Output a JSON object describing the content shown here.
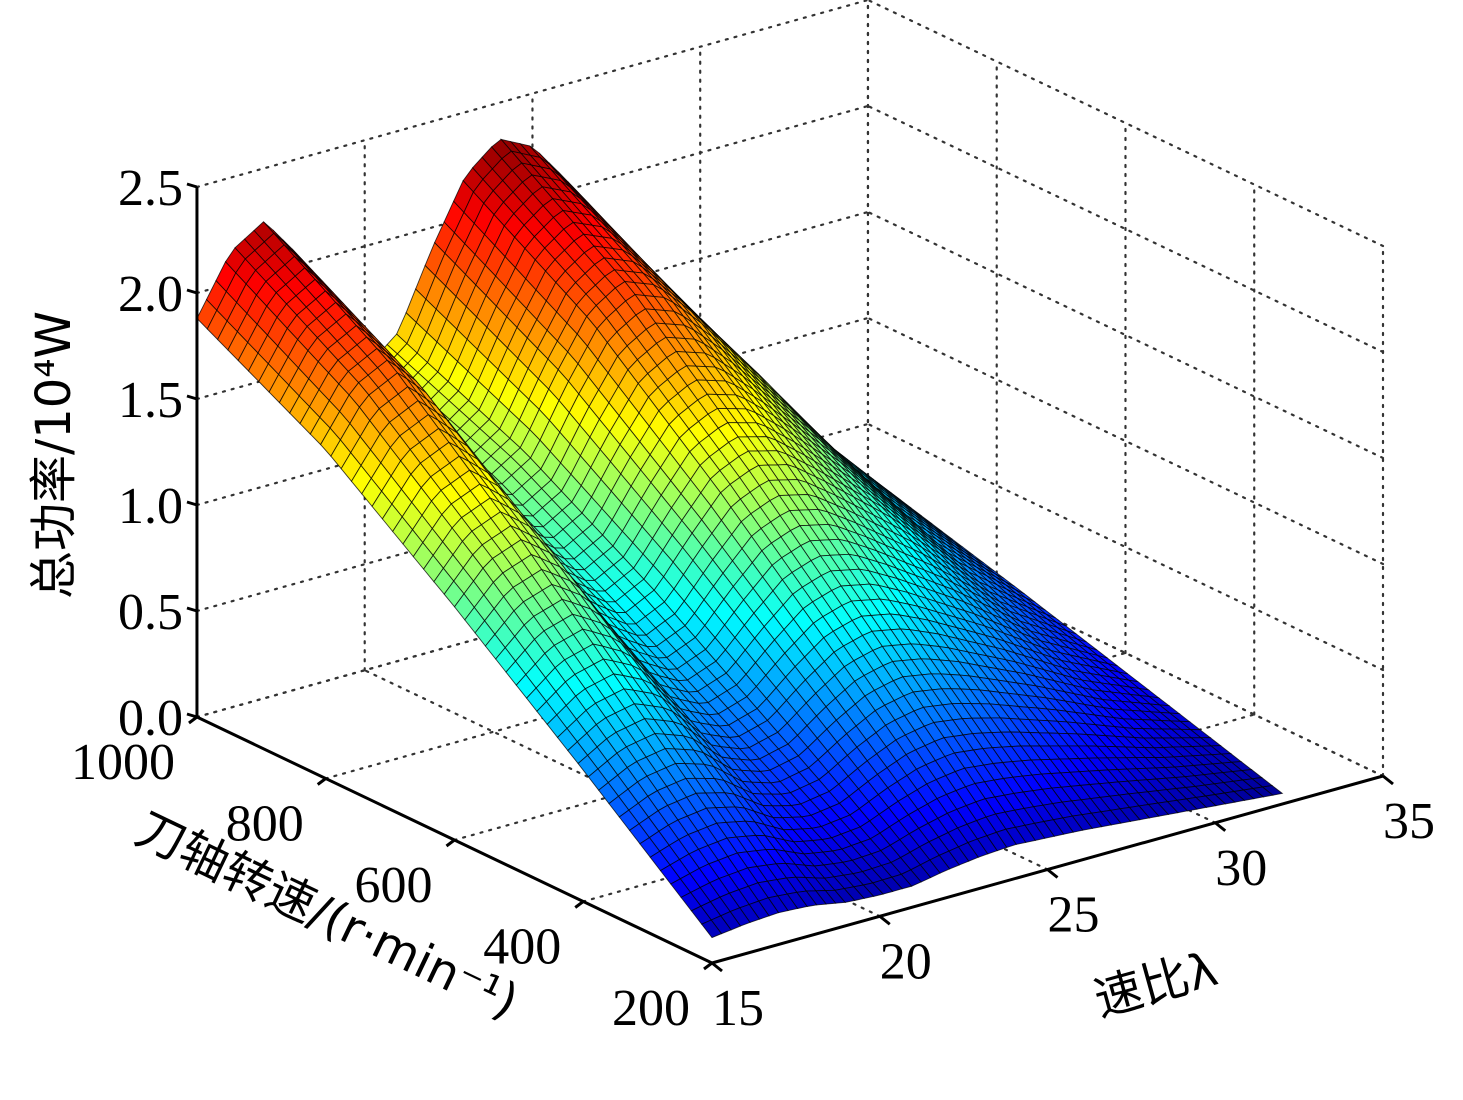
{
  "chart_data": {
    "type": "surface3d",
    "title": "",
    "x_axis": {
      "label": "速比λ",
      "range": [
        15,
        35
      ],
      "ticks": [
        15,
        20,
        25,
        30,
        35
      ],
      "tick_labels": [
        "15",
        "20",
        "25",
        "30",
        "35"
      ]
    },
    "y_axis": {
      "label": "刀轴转速/(r·min⁻¹)",
      "range": [
        200,
        1000
      ],
      "ticks": [
        200,
        400,
        600,
        800,
        1000
      ],
      "tick_labels": [
        "200",
        "400",
        "600",
        "800",
        "1000"
      ]
    },
    "z_axis": {
      "label": "总功率/10⁴W",
      "range": [
        0,
        2.5
      ],
      "ticks": [
        0,
        0.5,
        1.0,
        1.5,
        2.0,
        2.5
      ],
      "tick_labels": [
        "0.0",
        "0.5",
        "1.0",
        "1.5",
        "2.0",
        "2.5"
      ]
    },
    "grid": true,
    "colormap": "jet",
    "surface_extent": {
      "lambda": [
        15,
        32
      ],
      "speed": [
        200,
        1000
      ]
    },
    "surface_samples": {
      "lambda": [
        15,
        16,
        17,
        18,
        19,
        20,
        21,
        22,
        23,
        24,
        25,
        26,
        28,
        30,
        32
      ],
      "speed": [
        1000,
        800,
        600,
        400,
        200
      ],
      "z": [
        [
          1.88,
          2.15,
          2.25,
          2.05,
          1.6,
          1.42,
          1.55,
          1.9,
          2.2,
          2.33,
          2.25,
          2.05,
          1.6,
          1.1,
          0.7
        ],
        [
          1.55,
          1.78,
          1.86,
          1.7,
          1.32,
          1.18,
          1.28,
          1.57,
          1.82,
          1.92,
          1.86,
          1.7,
          1.32,
          0.91,
          0.58
        ],
        [
          1.1,
          1.27,
          1.33,
          1.21,
          0.95,
          0.84,
          0.92,
          1.12,
          1.3,
          1.37,
          1.33,
          1.21,
          0.95,
          0.65,
          0.41
        ],
        [
          0.62,
          0.71,
          0.74,
          0.68,
          0.53,
          0.47,
          0.51,
          0.63,
          0.73,
          0.77,
          0.74,
          0.68,
          0.53,
          0.36,
          0.23
        ],
        [
          0.12,
          0.14,
          0.15,
          0.14,
          0.11,
          0.1,
          0.1,
          0.13,
          0.15,
          0.16,
          0.15,
          0.14,
          0.11,
          0.08,
          0.05
        ]
      ]
    }
  }
}
